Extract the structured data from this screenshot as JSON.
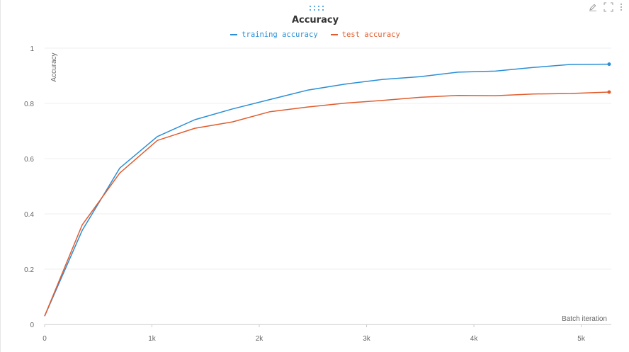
{
  "panel": {
    "title": "Accuracy",
    "icons": [
      "edit-icon",
      "fullscreen-icon",
      "more-icon"
    ]
  },
  "colors": {
    "training": "#2a8fd6",
    "test": "#e05c2e",
    "grid": "#efefef",
    "axis_text": "#666666"
  },
  "chart_data": {
    "type": "line",
    "title": "Accuracy",
    "xlabel": "Batch iteration",
    "ylabel": "Accuracy",
    "xlim": [
      0,
      5280
    ],
    "ylim": [
      0,
      1
    ],
    "x_ticks": [
      0,
      1000,
      2000,
      3000,
      4000,
      5000
    ],
    "x_tick_labels": [
      "0",
      "1k",
      "2k",
      "3k",
      "4k",
      "5k"
    ],
    "y_ticks": [
      0,
      0.2,
      0.4,
      0.6,
      0.8,
      1
    ],
    "y_tick_labels": [
      "0",
      "0.2",
      "0.4",
      "0.6",
      "0.8",
      "1"
    ],
    "grid": true,
    "legend_position": "top-center",
    "series": [
      {
        "name": "training accuracy",
        "color": "#2a8fd6",
        "x": [
          0,
          350,
          700,
          1050,
          1400,
          1750,
          2100,
          2450,
          2800,
          3150,
          3500,
          3850,
          4200,
          4550,
          4900,
          5260
        ],
        "y": [
          0.03,
          0.34,
          0.566,
          0.68,
          0.741,
          0.78,
          0.814,
          0.848,
          0.87,
          0.887,
          0.897,
          0.913,
          0.917,
          0.93,
          0.941,
          0.942
        ]
      },
      {
        "name": "test accuracy",
        "color": "#e05c2e",
        "x": [
          0,
          350,
          700,
          1050,
          1400,
          1750,
          2100,
          2450,
          2800,
          3150,
          3500,
          3850,
          4200,
          4550,
          4900,
          5260
        ],
        "y": [
          0.03,
          0.36,
          0.548,
          0.666,
          0.71,
          0.733,
          0.77,
          0.787,
          0.801,
          0.811,
          0.822,
          0.829,
          0.828,
          0.834,
          0.836,
          0.841
        ]
      }
    ]
  }
}
